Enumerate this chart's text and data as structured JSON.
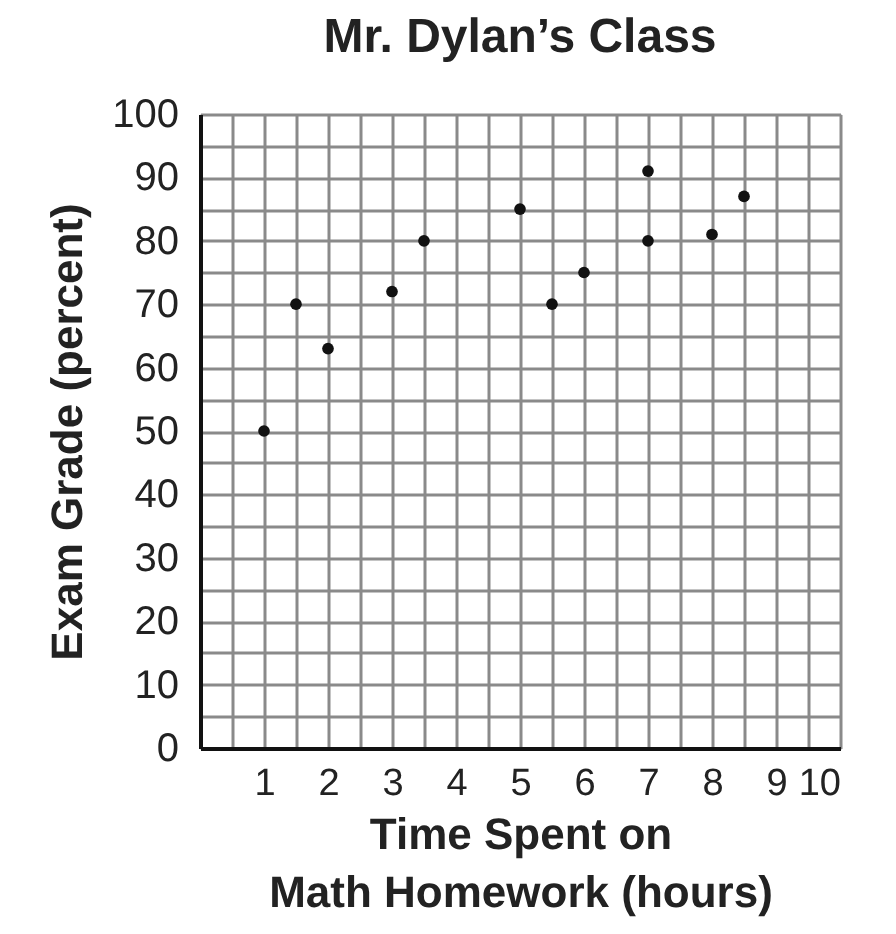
{
  "chart_data": {
    "type": "scatter",
    "title": "Mr. Dylan’s Class",
    "xlabel": "Time Spent on\nMath Homework (hours)",
    "ylabel": "Exam Grade (percent)",
    "x": [
      1,
      1.5,
      2,
      3,
      3.5,
      5,
      5.5,
      6,
      7,
      7,
      8,
      8.5
    ],
    "values": [
      50,
      70,
      63,
      72,
      80,
      85,
      70,
      75,
      91,
      80,
      81,
      87
    ],
    "color": "#111111",
    "marker": "circle",
    "grid": true,
    "xlim": [
      0,
      10
    ],
    "xticks": [
      {
        "value": 0,
        "label": null
      },
      {
        "value": 0.5,
        "label": null
      },
      1,
      {
        "value": 1.5,
        "label": null
      },
      2,
      {
        "value": 2.5,
        "label": null
      },
      3,
      {
        "value": 3.5,
        "label": null
      },
      4,
      {
        "value": 4.5,
        "label": null
      },
      5,
      {
        "value": 5.5,
        "label": null
      },
      6,
      {
        "value": 6.5,
        "label": null
      },
      7,
      {
        "value": 7.5,
        "label": null
      },
      8,
      {
        "value": 8.5,
        "label": null
      },
      9,
      {
        "value": 9.5,
        "label": null
      },
      10
    ],
    "ylim": [
      0,
      100
    ],
    "yticks": [
      0,
      {
        "value": 5,
        "label": null
      },
      10,
      {
        "value": 15,
        "label": null
      },
      20,
      {
        "value": 25,
        "label": null
      },
      30,
      {
        "value": 35,
        "label": null
      },
      40,
      {
        "value": 45,
        "label": null
      },
      50,
      {
        "value": 55,
        "label": null
      },
      60,
      {
        "value": 65,
        "label": null
      },
      70,
      {
        "value": 75,
        "label": null
      },
      80,
      {
        "value": 85,
        "label": null
      },
      90,
      {
        "value": 95,
        "label": null
      },
      100
    ]
  }
}
